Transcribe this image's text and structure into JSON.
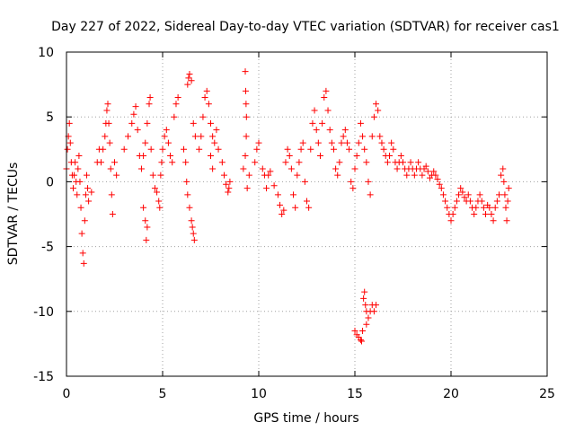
{
  "colors": {
    "series": "#ff0000",
    "grid": "#a0a0a0",
    "axis": "#000000",
    "background": "#ffffff"
  },
  "chart_data": {
    "type": "scatter",
    "title": "Day 227 of 2022, Sidereal Day-to-day VTEC variation (SDTVAR) for receiver cas1",
    "xlabel": "GPS time / hours",
    "ylabel": "SDTVAR / TECUs",
    "xlim": [
      0,
      25
    ],
    "ylim": [
      -15,
      10
    ],
    "xticks": [
      0,
      5,
      10,
      15,
      20,
      25
    ],
    "yticks": [
      -15,
      -10,
      -5,
      0,
      5,
      10
    ],
    "grid": true,
    "marker": "plus",
    "series": [
      {
        "name": "SDTVAR",
        "points": [
          [
            0.0,
            1.0
          ],
          [
            0.05,
            2.5
          ],
          [
            0.1,
            3.5
          ],
          [
            0.15,
            4.5
          ],
          [
            0.2,
            3.0
          ],
          [
            0.25,
            1.5
          ],
          [
            0.3,
            0.5
          ],
          [
            0.35,
            -0.5
          ],
          [
            0.4,
            0.5
          ],
          [
            0.45,
            1.5
          ],
          [
            0.5,
            0.0
          ],
          [
            0.55,
            -1.0
          ],
          [
            0.6,
            1.0
          ],
          [
            0.65,
            2.0
          ],
          [
            0.7,
            0.0
          ],
          [
            0.75,
            -2.0
          ],
          [
            0.8,
            -4.0
          ],
          [
            0.85,
            -5.5
          ],
          [
            0.9,
            -6.3
          ],
          [
            0.95,
            -3.0
          ],
          [
            1.0,
            -1.0
          ],
          [
            1.05,
            0.5
          ],
          [
            1.1,
            -0.5
          ],
          [
            1.15,
            -1.5
          ],
          [
            1.3,
            -0.8
          ],
          [
            1.6,
            1.5
          ],
          [
            1.7,
            2.5
          ],
          [
            1.8,
            1.5
          ],
          [
            1.9,
            2.5
          ],
          [
            2.0,
            3.5
          ],
          [
            2.05,
            4.5
          ],
          [
            2.1,
            5.5
          ],
          [
            2.15,
            6.0
          ],
          [
            2.2,
            4.5
          ],
          [
            2.25,
            3.0
          ],
          [
            2.3,
            1.0
          ],
          [
            2.35,
            -1.0
          ],
          [
            2.4,
            -2.5
          ],
          [
            2.5,
            1.5
          ],
          [
            2.6,
            0.5
          ],
          [
            3.0,
            2.5
          ],
          [
            3.2,
            3.5
          ],
          [
            3.4,
            4.5
          ],
          [
            3.5,
            5.2
          ],
          [
            3.6,
            5.8
          ],
          [
            3.7,
            4.0
          ],
          [
            3.8,
            2.0
          ],
          [
            3.9,
            1.0
          ],
          [
            4.0,
            2.0
          ],
          [
            4.1,
            3.0
          ],
          [
            4.2,
            4.5
          ],
          [
            4.3,
            6.0
          ],
          [
            4.35,
            6.5
          ],
          [
            4.0,
            -2.0
          ],
          [
            4.1,
            -3.0
          ],
          [
            4.15,
            -4.5
          ],
          [
            4.2,
            -3.5
          ],
          [
            4.4,
            2.5
          ],
          [
            4.5,
            0.5
          ],
          [
            4.6,
            -0.5
          ],
          [
            4.7,
            -0.8
          ],
          [
            4.8,
            -1.5
          ],
          [
            4.85,
            -2.0
          ],
          [
            4.9,
            0.5
          ],
          [
            4.95,
            1.5
          ],
          [
            5.0,
            2.5
          ],
          [
            5.1,
            3.5
          ],
          [
            5.2,
            4.0
          ],
          [
            5.3,
            3.0
          ],
          [
            5.4,
            2.0
          ],
          [
            5.5,
            1.5
          ],
          [
            5.6,
            5.0
          ],
          [
            5.7,
            6.0
          ],
          [
            5.8,
            6.5
          ],
          [
            6.1,
            2.5
          ],
          [
            6.2,
            1.5
          ],
          [
            6.25,
            0.0
          ],
          [
            6.3,
            -1.0
          ],
          [
            6.4,
            -2.0
          ],
          [
            6.5,
            -3.0
          ],
          [
            6.55,
            -3.5
          ],
          [
            6.6,
            -4.0
          ],
          [
            6.65,
            -4.5
          ],
          [
            6.3,
            7.5
          ],
          [
            6.35,
            8.0
          ],
          [
            6.4,
            8.3
          ],
          [
            6.5,
            7.8
          ],
          [
            6.6,
            4.5
          ],
          [
            6.7,
            3.5
          ],
          [
            6.9,
            2.5
          ],
          [
            7.0,
            3.5
          ],
          [
            7.1,
            5.0
          ],
          [
            7.2,
            6.5
          ],
          [
            7.3,
            7.0
          ],
          [
            7.4,
            6.0
          ],
          [
            7.5,
            4.5
          ],
          [
            7.6,
            3.5
          ],
          [
            7.7,
            3.0
          ],
          [
            7.8,
            4.0
          ],
          [
            7.9,
            2.5
          ],
          [
            7.5,
            2.0
          ],
          [
            7.6,
            1.0
          ],
          [
            8.1,
            1.5
          ],
          [
            8.2,
            0.5
          ],
          [
            8.3,
            -0.2
          ],
          [
            8.4,
            -0.8
          ],
          [
            8.45,
            -0.5
          ],
          [
            8.5,
            0.0
          ],
          [
            9.2,
            1.0
          ],
          [
            9.3,
            2.0
          ],
          [
            9.35,
            3.5
          ],
          [
            9.3,
            8.5
          ],
          [
            9.32,
            7.0
          ],
          [
            9.34,
            6.0
          ],
          [
            9.36,
            5.0
          ],
          [
            9.4,
            -0.5
          ],
          [
            9.5,
            0.5
          ],
          [
            9.8,
            1.5
          ],
          [
            9.9,
            2.5
          ],
          [
            10.0,
            3.0
          ],
          [
            10.2,
            1.0
          ],
          [
            10.3,
            0.5
          ],
          [
            10.4,
            -0.5
          ],
          [
            10.5,
            0.5
          ],
          [
            10.6,
            0.8
          ],
          [
            10.8,
            -0.3
          ],
          [
            11.0,
            -1.0
          ],
          [
            11.1,
            -1.8
          ],
          [
            11.2,
            -2.5
          ],
          [
            11.3,
            -2.2
          ],
          [
            11.4,
            1.5
          ],
          [
            11.5,
            2.5
          ],
          [
            11.6,
            2.0
          ],
          [
            11.7,
            1.0
          ],
          [
            11.8,
            -1.0
          ],
          [
            11.9,
            -2.0
          ],
          [
            12.0,
            0.5
          ],
          [
            12.1,
            1.5
          ],
          [
            12.2,
            2.5
          ],
          [
            12.3,
            3.0
          ],
          [
            12.4,
            0.0
          ],
          [
            12.5,
            -1.5
          ],
          [
            12.6,
            -2.0
          ],
          [
            12.7,
            2.5
          ],
          [
            12.8,
            4.5
          ],
          [
            12.9,
            5.5
          ],
          [
            13.0,
            4.0
          ],
          [
            13.1,
            3.0
          ],
          [
            13.2,
            2.0
          ],
          [
            13.3,
            4.5
          ],
          [
            13.4,
            6.5
          ],
          [
            13.5,
            7.0
          ],
          [
            13.6,
            5.5
          ],
          [
            13.7,
            4.0
          ],
          [
            13.8,
            3.0
          ],
          [
            13.9,
            2.5
          ],
          [
            14.0,
            1.0
          ],
          [
            14.1,
            0.5
          ],
          [
            14.2,
            1.5
          ],
          [
            14.3,
            3.0
          ],
          [
            14.4,
            3.5
          ],
          [
            14.5,
            4.0
          ],
          [
            14.6,
            3.0
          ],
          [
            14.7,
            2.5
          ],
          [
            14.8,
            0.0
          ],
          [
            14.9,
            -0.5
          ],
          [
            15.0,
            1.0
          ],
          [
            15.1,
            2.0
          ],
          [
            15.2,
            3.0
          ],
          [
            15.3,
            4.5
          ],
          [
            15.4,
            3.5
          ],
          [
            15.5,
            2.5
          ],
          [
            15.6,
            1.5
          ],
          [
            15.7,
            0.0
          ],
          [
            15.8,
            -1.0
          ],
          [
            15.9,
            3.5
          ],
          [
            16.0,
            5.0
          ],
          [
            16.1,
            6.0
          ],
          [
            16.2,
            5.5
          ],
          [
            16.3,
            3.5
          ],
          [
            16.4,
            3.0
          ],
          [
            16.5,
            2.5
          ],
          [
            16.6,
            2.0
          ],
          [
            16.7,
            1.5
          ],
          [
            16.8,
            2.0
          ],
          [
            16.9,
            3.0
          ],
          [
            17.0,
            2.5
          ],
          [
            17.1,
            1.5
          ],
          [
            17.2,
            1.0
          ],
          [
            17.3,
            1.5
          ],
          [
            17.4,
            2.0
          ],
          [
            17.5,
            1.5
          ],
          [
            17.6,
            1.0
          ],
          [
            17.7,
            0.5
          ],
          [
            17.8,
            1.0
          ],
          [
            17.9,
            1.5
          ],
          [
            18.0,
            1.0
          ],
          [
            18.1,
            0.5
          ],
          [
            18.2,
            1.0
          ],
          [
            18.3,
            1.5
          ],
          [
            18.4,
            1.0
          ],
          [
            18.5,
            0.5
          ],
          [
            18.6,
            1.0
          ],
          [
            18.7,
            1.2
          ],
          [
            18.8,
            0.8
          ],
          [
            18.9,
            0.3
          ],
          [
            19.0,
            0.5
          ],
          [
            19.1,
            0.8
          ],
          [
            19.2,
            0.5
          ],
          [
            19.3,
            0.2
          ],
          [
            19.4,
            -0.2
          ],
          [
            19.5,
            -0.5
          ],
          [
            19.6,
            -1.0
          ],
          [
            19.7,
            -1.5
          ],
          [
            19.8,
            -2.0
          ],
          [
            19.9,
            -2.5
          ],
          [
            20.0,
            -3.0
          ],
          [
            20.1,
            -2.5
          ],
          [
            20.2,
            -2.0
          ],
          [
            20.3,
            -1.5
          ],
          [
            20.4,
            -1.0
          ],
          [
            20.5,
            -0.5
          ],
          [
            20.6,
            -0.8
          ],
          [
            20.7,
            -1.2
          ],
          [
            20.8,
            -1.5
          ],
          [
            20.9,
            -1.0
          ],
          [
            21.0,
            -1.5
          ],
          [
            21.1,
            -2.0
          ],
          [
            21.2,
            -2.5
          ],
          [
            21.3,
            -2.0
          ],
          [
            21.4,
            -1.5
          ],
          [
            21.5,
            -1.0
          ],
          [
            21.6,
            -1.5
          ],
          [
            21.7,
            -2.0
          ],
          [
            21.8,
            -2.5
          ],
          [
            21.9,
            -1.8
          ],
          [
            22.0,
            -2.0
          ],
          [
            22.1,
            -2.5
          ],
          [
            22.2,
            -3.0
          ],
          [
            22.3,
            -2.0
          ],
          [
            22.4,
            -1.5
          ],
          [
            22.5,
            -1.0
          ],
          [
            22.6,
            0.5
          ],
          [
            22.7,
            1.0
          ],
          [
            22.75,
            0.0
          ],
          [
            22.8,
            -1.0
          ],
          [
            22.85,
            -2.0
          ],
          [
            22.9,
            -3.0
          ],
          [
            22.95,
            -1.5
          ],
          [
            23.0,
            -0.5
          ],
          [
            15.0,
            -11.5
          ],
          [
            15.1,
            -11.8
          ],
          [
            15.2,
            -12.0
          ],
          [
            15.3,
            -12.2
          ],
          [
            15.4,
            -11.5
          ],
          [
            15.45,
            -9.0
          ],
          [
            15.5,
            -8.5
          ],
          [
            15.55,
            -9.5
          ],
          [
            15.6,
            -11.0
          ],
          [
            15.7,
            -10.5
          ],
          [
            15.8,
            -10.0
          ],
          [
            15.9,
            -9.5
          ],
          [
            16.0,
            -10.0
          ],
          [
            16.1,
            -9.5
          ],
          [
            15.35,
            -12.3
          ],
          [
            15.6,
            -10.0
          ]
        ]
      }
    ]
  }
}
